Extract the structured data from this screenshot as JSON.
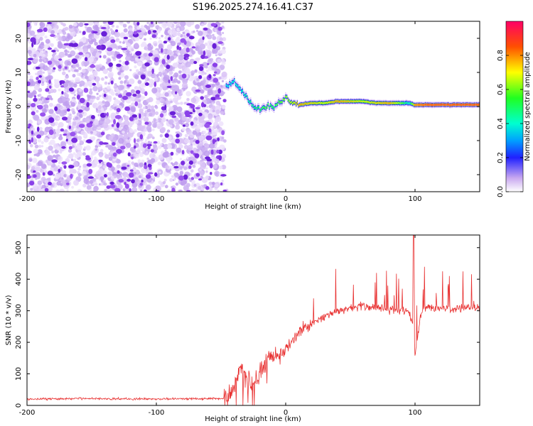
{
  "title": "S196.2025.274.16.41.C37",
  "chart_data": [
    {
      "type": "heatmap",
      "xlabel": "Height of straight line (km)",
      "ylabel": "Frequency (Hz)",
      "xlim": [
        -200,
        150
      ],
      "ylim": [
        -25,
        25
      ],
      "xticks": [
        -200,
        -100,
        0,
        100
      ],
      "yticks": [
        -20,
        -10,
        0,
        10,
        20
      ],
      "noise_region_x": [
        -200,
        -47
      ],
      "signal_trace": {
        "x": [
          -45,
          -40,
          -35,
          -30,
          -25,
          -20,
          -15,
          -10,
          -5,
          0,
          5,
          10,
          20,
          30,
          40,
          50,
          60,
          70,
          80,
          90,
          95,
          100,
          110,
          120,
          130,
          140,
          150
        ],
        "freq": [
          6,
          7,
          5,
          3,
          0,
          -1,
          0,
          0,
          1,
          2.5,
          1,
          0.5,
          1,
          1,
          1.5,
          1.5,
          1.5,
          1,
          1,
          1,
          1,
          0.5,
          0.5,
          0.5,
          0.5,
          0.5,
          0.5
        ],
        "amplitude": [
          0.35,
          0.4,
          0.4,
          0.45,
          0.5,
          0.55,
          0.6,
          0.55,
          0.6,
          0.65,
          0.7,
          0.8,
          0.75,
          0.7,
          0.8,
          0.75,
          0.7,
          0.75,
          0.8,
          0.6,
          0.4,
          0.85,
          0.9,
          0.9,
          0.9,
          0.9,
          0.9
        ]
      },
      "colorbar": {
        "label": "Normalized spectral amplitude",
        "range": [
          0.0,
          1.0
        ],
        "ticks": [
          "0.0",
          "0.2",
          "0.4",
          "0.6",
          "0.8"
        ]
      }
    },
    {
      "type": "line",
      "xlabel": "Height of straight line (km)",
      "ylabel": "SNR (10 * v/v)",
      "xlim": [
        -200,
        150
      ],
      "ylim": [
        0,
        540
      ],
      "xticks": [
        -200,
        -100,
        0,
        100
      ],
      "yticks": [
        0,
        100,
        200,
        300,
        400,
        500
      ],
      "color": "#e83030",
      "series": {
        "name": "SNR",
        "x": [
          -200,
          -150,
          -100,
          -60,
          -50,
          -45,
          -40,
          -35,
          -30,
          -25,
          -20,
          -15,
          -10,
          -5,
          0,
          5,
          10,
          20,
          30,
          40,
          50,
          60,
          70,
          80,
          90,
          95,
          99,
          100,
          105,
          110,
          120,
          130,
          140,
          150
        ],
        "y": [
          20,
          22,
          20,
          22,
          22,
          25,
          60,
          120,
          80,
          70,
          100,
          140,
          160,
          160,
          175,
          200,
          230,
          260,
          280,
          300,
          310,
          315,
          310,
          305,
          300,
          300,
          250,
          160,
          300,
          310,
          310,
          305,
          315,
          310
        ]
      }
    }
  ]
}
